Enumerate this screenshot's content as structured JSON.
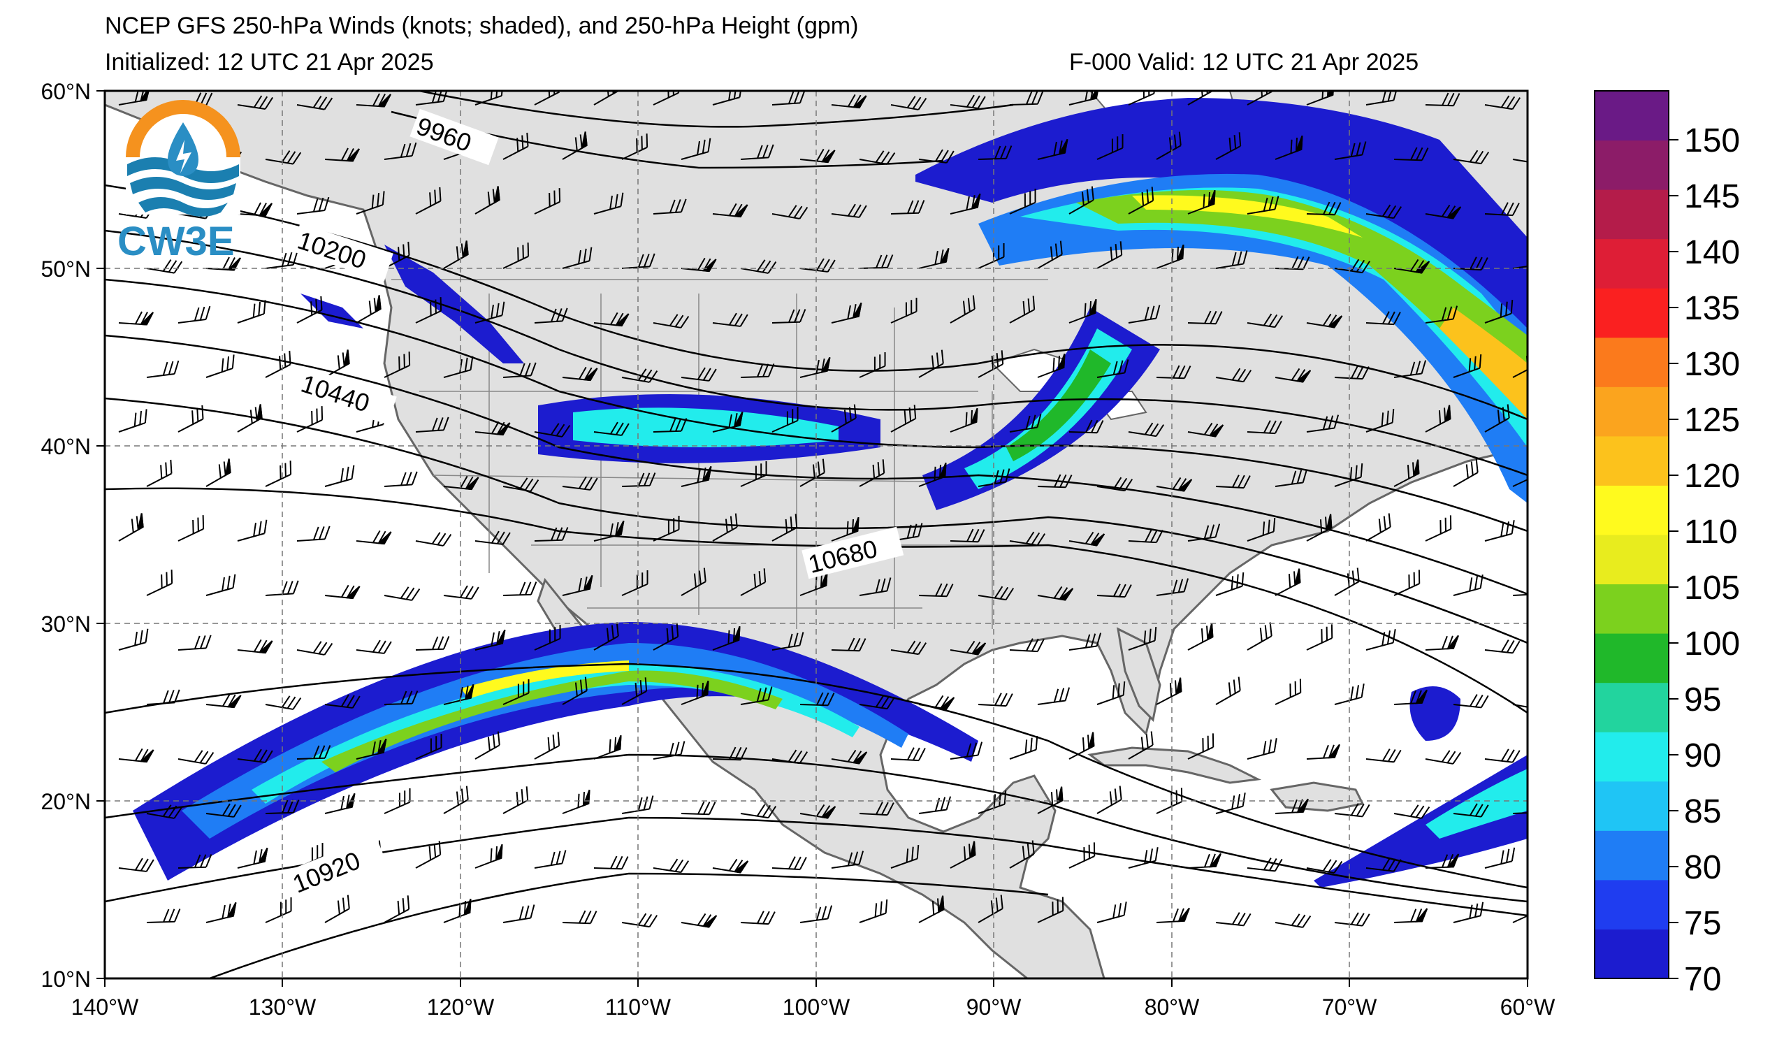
{
  "title": {
    "line1": "NCEP GFS 250-hPa Winds (knots; shaded), and 250-hPa Height (gpm)",
    "line2_left": "Initialized: 12 UTC 21 Apr 2025",
    "line2_right": "F-000  Valid: 12 UTC 21 Apr 2025"
  },
  "logo": {
    "text": "CW3E"
  },
  "map": {
    "lon_ticks": [
      "140°W",
      "130°W",
      "120°W",
      "110°W",
      "100°W",
      "90°W",
      "80°W",
      "70°W",
      "60°W"
    ],
    "lat_ticks": [
      "60°N",
      "50°N",
      "40°N",
      "30°N",
      "20°N",
      "10°N"
    ],
    "lon_range": [
      -140,
      -60
    ],
    "lat_range": [
      10,
      60
    ],
    "height_contour_labels": [
      "9960",
      "10200",
      "10440",
      "10680",
      "10920"
    ],
    "land_color": "#e0e0e0",
    "ocean_color": "#ffffff"
  },
  "colorbar": {
    "ticks": [
      "70",
      "75",
      "80",
      "85",
      "90",
      "95",
      "100",
      "105",
      "110",
      "120",
      "125",
      "130",
      "135",
      "140",
      "145",
      "150"
    ],
    "colors": [
      "#1c1ccf",
      "#1f3df0",
      "#1f7df5",
      "#1fc5f5",
      "#22ecec",
      "#22d49e",
      "#20b82a",
      "#7cd11e",
      "#e8ec1e",
      "#fffa1e",
      "#fcc21c",
      "#fba41e",
      "#fb7a1c",
      "#fa2020",
      "#de1e36",
      "#b41c4a",
      "#8c1c68",
      "#6a1a86"
    ],
    "units": "knots"
  }
}
